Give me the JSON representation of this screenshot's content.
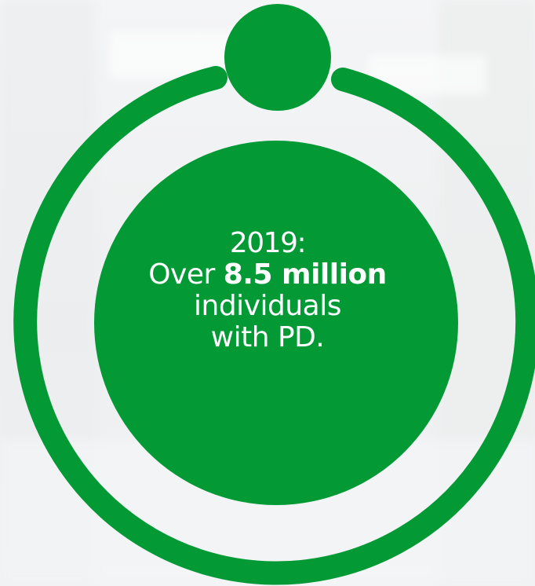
{
  "colors": {
    "accent_green": "#039a36",
    "background": "#f1f2f3",
    "text": "#ffffff"
  },
  "graphic": {
    "icon": "person-circle-icon"
  },
  "statement": {
    "year_line": "2019:",
    "line2_prefix": "Over",
    "line2_bold": "8.5 million",
    "line3": "individuals",
    "line4": "with PD."
  }
}
